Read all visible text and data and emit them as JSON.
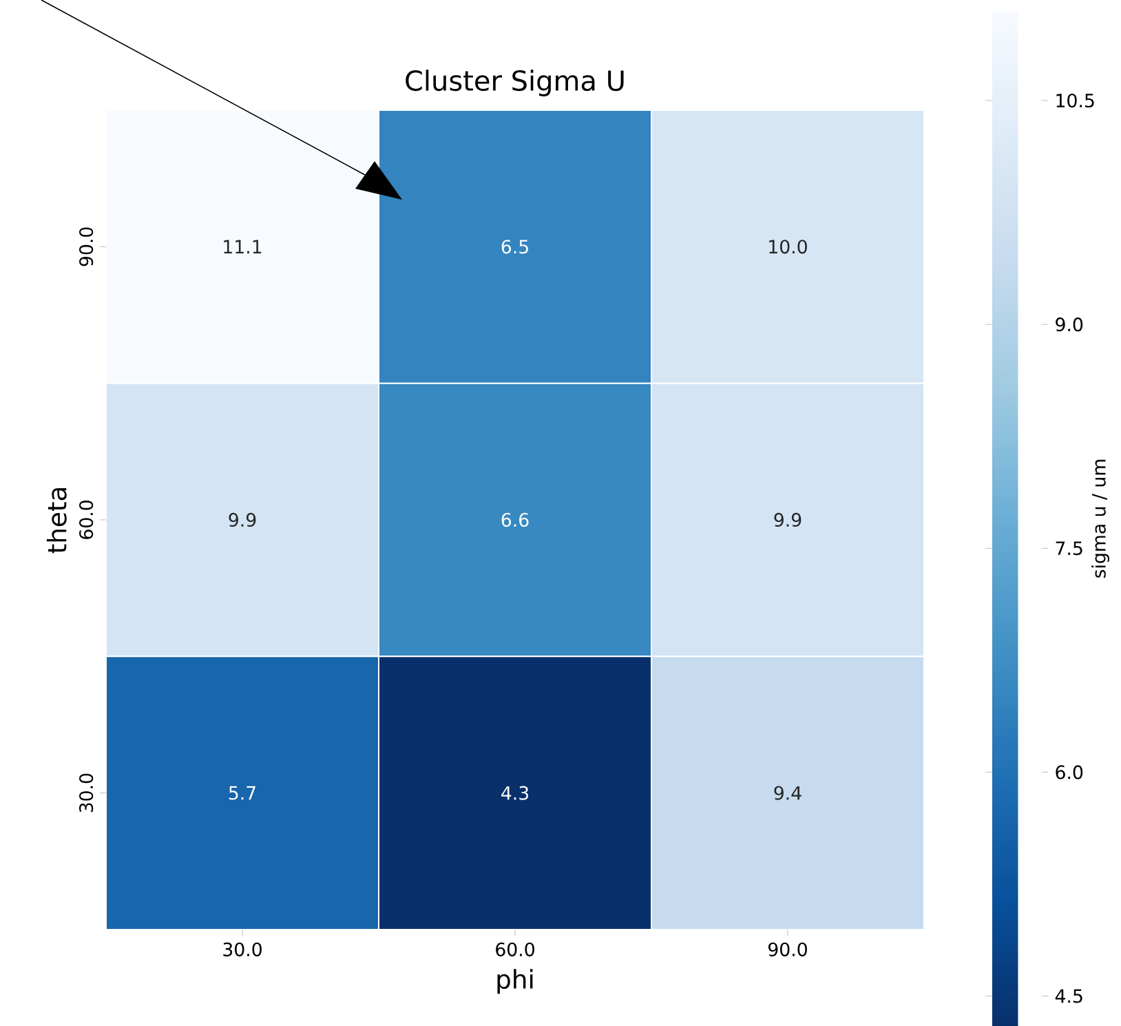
{
  "chart_data": {
    "type": "heatmap",
    "title": "Cluster Sigma U",
    "xlabel": "phi",
    "ylabel": "theta",
    "clabel": "sigma u / um",
    "categories": [
      "30.0",
      "60.0",
      "90.0"
    ],
    "y_categories": [
      "90.0",
      "60.0",
      "30.0"
    ],
    "cells": [
      [
        11.1,
        6.5,
        10.0
      ],
      [
        9.9,
        6.6,
        9.9
      ],
      [
        5.7,
        4.3,
        9.4
      ]
    ],
    "cell_labels": [
      [
        "11.1",
        "6.5",
        "10.0"
      ],
      [
        "9.9",
        "6.6",
        "9.9"
      ],
      [
        "5.7",
        "4.3",
        "9.4"
      ]
    ],
    "clim": [
      4.3,
      11.1
    ],
    "cticks": [
      4.5,
      {
        "value": 6.0,
        "label": "6.0"
      },
      7.5,
      {
        "value": 9.0,
        "label": "9.0"
      },
      10.5
    ]
  }
}
